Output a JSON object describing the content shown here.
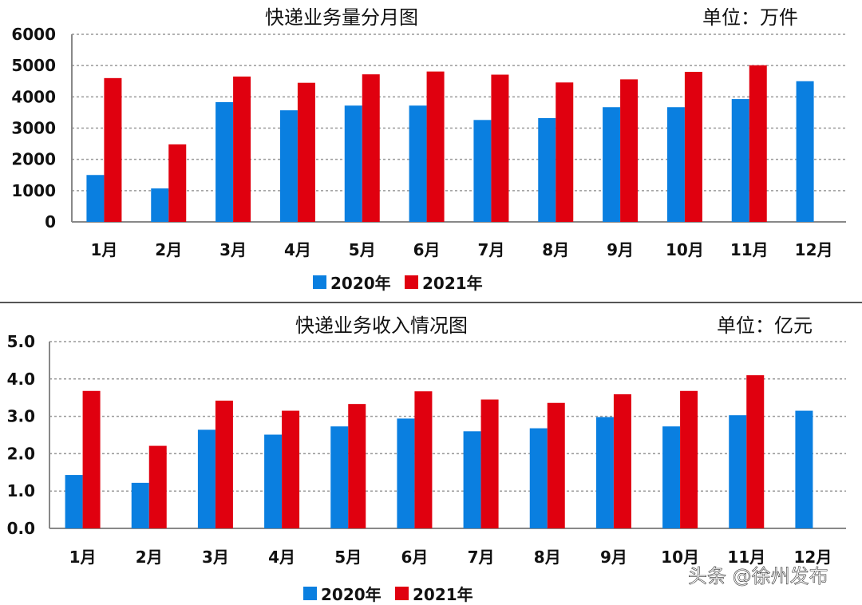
{
  "colors": {
    "series_2020": "#0a7fe0",
    "series_2021": "#e0000f",
    "grid": "#999999"
  },
  "watermark": "头条 @徐州发布",
  "chart_data": [
    {
      "type": "bar",
      "title": "快递业务量分月图",
      "unit": "单位：万件",
      "categories": [
        "1月",
        "2月",
        "3月",
        "4月",
        "5月",
        "6月",
        "7月",
        "8月",
        "9月",
        "10月",
        "11月",
        "12月"
      ],
      "ylim": [
        0,
        6000
      ],
      "yticks": [
        "0",
        "1000",
        "2000",
        "3000",
        "4000",
        "5000",
        "6000"
      ],
      "grid": true,
      "legend": "bottom",
      "series": [
        {
          "name": "2020年",
          "values": [
            1500,
            1070,
            3830,
            3570,
            3720,
            3720,
            3260,
            3320,
            3670,
            3670,
            3930,
            4500
          ]
        },
        {
          "name": "2021年",
          "values": [
            4600,
            2480,
            4650,
            4450,
            4720,
            4810,
            4710,
            4460,
            4560,
            4800,
            5010,
            null
          ]
        }
      ]
    },
    {
      "type": "bar",
      "title": "快递业务收入情况图",
      "unit": "单位：亿元",
      "categories": [
        "1月",
        "2月",
        "3月",
        "4月",
        "5月",
        "6月",
        "7月",
        "8月",
        "9月",
        "10月",
        "11月",
        "12月"
      ],
      "ylim": [
        0,
        5.0
      ],
      "yticks": [
        "0.0",
        "1.0",
        "2.0",
        "3.0",
        "4.0",
        "5.0"
      ],
      "grid": true,
      "legend": "bottom",
      "series": [
        {
          "name": "2020年",
          "values": [
            1.43,
            1.22,
            2.64,
            2.51,
            2.73,
            2.94,
            2.6,
            2.68,
            2.98,
            2.73,
            3.03,
            3.15
          ]
        },
        {
          "name": "2021年",
          "values": [
            3.68,
            2.21,
            3.42,
            3.15,
            3.33,
            3.67,
            3.45,
            3.36,
            3.59,
            3.68,
            4.1,
            null
          ]
        }
      ]
    }
  ]
}
